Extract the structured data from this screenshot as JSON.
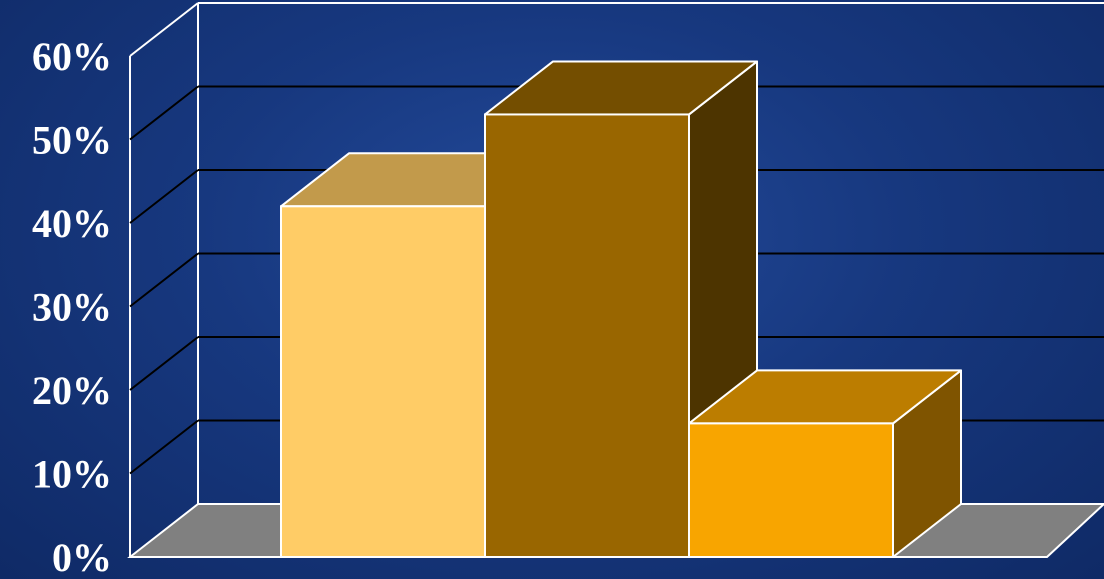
{
  "chart_data": {
    "type": "bar",
    "categories": [
      "",
      "",
      ""
    ],
    "values": [
      42,
      53,
      16
    ],
    "colors": {
      "bars": [
        {
          "front": "#ffcc66",
          "top": "#c29a4b",
          "side": "#8a6a2e"
        },
        {
          "front": "#996600",
          "top": "#744e00",
          "side": "#4d3400"
        },
        {
          "front": "#f8a500",
          "top": "#bc7d00",
          "side": "#7f5400"
        }
      ],
      "floor": "#808080",
      "grid": "#000000",
      "edge": "#ffffff",
      "background": "#17387f"
    },
    "ylim": [
      0,
      60
    ],
    "ytick_labels": [
      "0%",
      "10%",
      "20%",
      "30%",
      "40%",
      "50%",
      "60%"
    ],
    "ytick_values": [
      0,
      10,
      20,
      30,
      40,
      50,
      60
    ],
    "grid": true,
    "style": "3d-column"
  }
}
